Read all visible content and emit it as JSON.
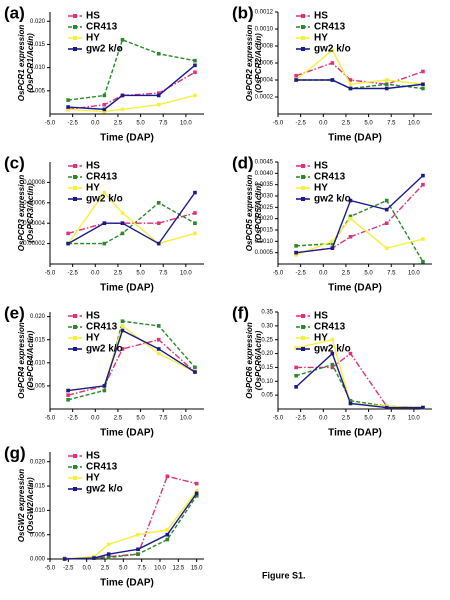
{
  "caption": "Figure S1.",
  "chart_data": [
    {
      "type": "line",
      "panel_label": "(a)",
      "ylabel": "OsPCR1 expression",
      "ylabel_sub": "(OsPCR1/Actin)",
      "xlabel": "Time (DAP)",
      "x": [
        -3,
        1,
        3,
        7,
        11
      ],
      "xlim": [
        -5,
        12
      ],
      "xticks": [
        {
          "value": -5,
          "label": "-5.0"
        },
        -2.5,
        {
          "value": 0,
          "label": "0.0"
        },
        2.5,
        {
          "value": 5,
          "label": "5.0"
        },
        7.5,
        {
          "value": 10,
          "label": "10.0"
        }
      ],
      "ylim": [
        0,
        0.022
      ],
      "yticks": [
        0.005,
        {
          "value": 0.01,
          "label": "0.010"
        },
        0.015,
        {
          "value": 0.02,
          "label": "0.020"
        }
      ],
      "series": [
        {
          "name": "HS",
          "color": "#e0307a",
          "values": [
            0.001,
            0.002,
            0.004,
            0.0045,
            0.009
          ]
        },
        {
          "name": "CR413",
          "color": "#2a8a2a",
          "values": [
            0.003,
            0.004,
            0.016,
            0.013,
            0.0115
          ]
        },
        {
          "name": "HY",
          "color": "#f5f040",
          "values": [
            0.001,
            0.0005,
            0.001,
            0.002,
            0.004
          ]
        },
        {
          "name": "gw2 k/o",
          "color": "#1a1a8c",
          "values": [
            0.0015,
            0.001,
            0.004,
            0.004,
            0.0105
          ]
        }
      ]
    },
    {
      "type": "line",
      "panel_label": "(b)",
      "ylabel": "OsPCR2 expression",
      "ylabel_sub": "(OsPCR2/Actin)",
      "xlabel": "Time (DAP)",
      "x": [
        -3,
        1,
        3,
        7,
        11
      ],
      "xlim": [
        -5,
        12
      ],
      "xticks": [
        {
          "value": -5,
          "label": "-5.0"
        },
        -2.5,
        {
          "value": 0,
          "label": "0.0"
        },
        2.5,
        {
          "value": 5,
          "label": "5.0"
        },
        7.5,
        {
          "value": 10,
          "label": "10.0"
        }
      ],
      "ylim": [
        0,
        0.0012
      ],
      "yticks": [
        0.0002,
        0.0004,
        0.0006,
        0.0008,
        {
          "value": 0.001,
          "label": "0.0010"
        },
        0.0012
      ],
      "series": [
        {
          "name": "HS",
          "color": "#e0307a",
          "values": [
            0.00045,
            0.0006,
            0.0004,
            0.00035,
            0.0005
          ]
        },
        {
          "name": "CR413",
          "color": "#2a8a2a",
          "values": [
            0.0004,
            0.0004,
            0.0003,
            0.00035,
            0.0003
          ]
        },
        {
          "name": "HY",
          "color": "#f5f040",
          "values": [
            0.0004,
            0.00075,
            0.00035,
            0.0004,
            0.00035
          ]
        },
        {
          "name": "gw2 k/o",
          "color": "#1a1a8c",
          "values": [
            0.0004,
            0.0004,
            0.0003,
            0.0003,
            0.00035
          ]
        }
      ]
    },
    {
      "type": "line",
      "panel_label": "(c)",
      "ylabel": "OsPCR3 expression",
      "ylabel_sub": "(OsPCR3/Actin)",
      "xlabel": "Time (DAP)",
      "x": [
        -3,
        1,
        3,
        7,
        11
      ],
      "xlim": [
        -5,
        12
      ],
      "xticks": [
        {
          "value": -5,
          "label": "-5.0"
        },
        -2.5,
        {
          "value": 0,
          "label": "0.0"
        },
        2.5,
        {
          "value": 5,
          "label": "5.0"
        },
        7.5,
        {
          "value": 10,
          "label": "10.0"
        }
      ],
      "ylim": [
        0,
        0.0001
      ],
      "yticks": [
        2e-05,
        4e-05,
        6e-05,
        8e-05
      ],
      "series": [
        {
          "name": "HS",
          "color": "#e0307a",
          "values": [
            3e-05,
            4e-05,
            4e-05,
            4e-05,
            5e-05
          ]
        },
        {
          "name": "CR413",
          "color": "#2a8a2a",
          "values": [
            2e-05,
            2e-05,
            3e-05,
            6e-05,
            4e-05
          ]
        },
        {
          "name": "HY",
          "color": "#f5f040",
          "values": [
            2e-05,
            7e-05,
            5e-05,
            2e-05,
            3e-05
          ]
        },
        {
          "name": "gw2 k/o",
          "color": "#1a1a8c",
          "values": [
            2e-05,
            4e-05,
            4e-05,
            2e-05,
            7e-05
          ]
        }
      ]
    },
    {
      "type": "line",
      "panel_label": "(d)",
      "ylabel": "OsPCR5 expression",
      "ylabel_sub": "(OsPCR5/Actin)",
      "xlabel": "Time (DAP)",
      "x": [
        -3,
        1,
        3,
        7,
        11
      ],
      "xlim": [
        -5,
        12
      ],
      "xticks": [
        {
          "value": -5,
          "label": "-5.0"
        },
        -2.5,
        {
          "value": 0,
          "label": "0.0"
        },
        2.5,
        {
          "value": 5,
          "label": "5.0"
        },
        7.5,
        {
          "value": 10,
          "label": "10.0"
        }
      ],
      "ylim": [
        0,
        0.0045
      ],
      "yticks": [
        0.0005,
        {
          "value": 0.001,
          "label": "0.0010"
        },
        0.0015,
        {
          "value": 0.002,
          "label": "0.0020"
        },
        0.0025,
        {
          "value": 0.003,
          "label": "0.0030"
        },
        0.0035,
        {
          "value": 0.004,
          "label": "0.0040"
        },
        0.0045
      ],
      "series": [
        {
          "name": "HS",
          "color": "#e0307a",
          "values": [
            0.0005,
            0.0007,
            0.0012,
            0.0018,
            0.0035
          ]
        },
        {
          "name": "CR413",
          "color": "#2a8a2a",
          "values": [
            0.0008,
            0.0009,
            0.0021,
            0.0028,
            0.0001
          ]
        },
        {
          "name": "HY",
          "color": "#f5f040",
          "values": [
            0.0004,
            0.001,
            0.002,
            0.0007,
            0.0011
          ]
        },
        {
          "name": "gw2 k/o",
          "color": "#1a1a8c",
          "values": [
            0.0005,
            0.0007,
            0.0028,
            0.0024,
            0.0039
          ]
        }
      ]
    },
    {
      "type": "line",
      "panel_label": "(e)",
      "ylabel": "OsPCR4 expression",
      "ylabel_sub": "(OsPCR4/Actin)",
      "xlabel": "Time (DAP)",
      "x": [
        -3,
        1,
        3,
        7,
        11
      ],
      "xlim": [
        -5,
        12
      ],
      "xticks": [
        {
          "value": -5,
          "label": "-5.0"
        },
        -2.5,
        {
          "value": 0,
          "label": "0.0"
        },
        2.5,
        {
          "value": 5,
          "label": "5.0"
        },
        7.5,
        {
          "value": 10,
          "label": "10.0"
        }
      ],
      "ylim": [
        0,
        0.021
      ],
      "yticks": [
        0.005,
        {
          "value": 0.01,
          "label": "0.010"
        },
        0.015,
        {
          "value": 0.02,
          "label": "0.020"
        }
      ],
      "series": [
        {
          "name": "HS",
          "color": "#e0307a",
          "values": [
            0.003,
            0.005,
            0.013,
            0.015,
            0.008
          ]
        },
        {
          "name": "CR413",
          "color": "#2a8a2a",
          "values": [
            0.002,
            0.004,
            0.019,
            0.018,
            0.009
          ]
        },
        {
          "name": "HY",
          "color": "#f5f040",
          "values": [
            0.004,
            0.005,
            0.018,
            0.012,
            0.008
          ]
        },
        {
          "name": "gw2 k/o",
          "color": "#1a1a8c",
          "values": [
            0.004,
            0.005,
            0.017,
            0.013,
            0.008
          ]
        }
      ]
    },
    {
      "type": "line",
      "panel_label": "(f)",
      "ylabel": "OsPCR6 expression",
      "ylabel_sub": "(OsPCR6/Actin)",
      "xlabel": "Time (DAP)",
      "x": [
        -3,
        1,
        3,
        7,
        11
      ],
      "xlim": [
        -5,
        12
      ],
      "xticks": [
        {
          "value": -5,
          "label": "-5.0"
        },
        -2.5,
        {
          "value": 0,
          "label": "0.0"
        },
        2.5,
        {
          "value": 5,
          "label": "5.0"
        },
        7.5,
        {
          "value": 10,
          "label": "10.0"
        }
      ],
      "ylim": [
        0,
        0.35
      ],
      "yticks": [
        0.05,
        {
          "value": 0.1,
          "label": "0.10"
        },
        0.15,
        {
          "value": 0.2,
          "label": "0.20"
        },
        0.25,
        {
          "value": 0.3,
          "label": "0.30"
        },
        0.35
      ],
      "series": [
        {
          "name": "HS",
          "color": "#e0307a",
          "values": [
            0.15,
            0.15,
            0.2,
            0.01,
            0.005
          ]
        },
        {
          "name": "CR413",
          "color": "#2a8a2a",
          "values": [
            0.12,
            0.16,
            0.03,
            0.01,
            0.005
          ]
        },
        {
          "name": "HY",
          "color": "#f5f040",
          "values": [
            0.22,
            0.25,
            0.02,
            0.01,
            0.005
          ]
        },
        {
          "name": "gw2 k/o",
          "color": "#1a1a8c",
          "values": [
            0.08,
            0.2,
            0.02,
            0.005,
            0.005
          ]
        }
      ]
    },
    {
      "type": "line",
      "panel_label": "(g)",
      "ylabel": "OsGW2 expression",
      "ylabel_sub": "(OsGW2/Actin)",
      "xlabel": "Time (DAP)",
      "x": [
        -3,
        1,
        3,
        7,
        11,
        15
      ],
      "xlim": [
        -5,
        16
      ],
      "xticks": [
        {
          "value": -5,
          "label": "-5.0"
        },
        -2.5,
        {
          "value": 0,
          "label": "0.0"
        },
        2.5,
        {
          "value": 5,
          "label": "5.0"
        },
        7.5,
        {
          "value": 10,
          "label": "10.0"
        },
        12.5,
        {
          "value": 15,
          "label": "15.0"
        }
      ],
      "ylim": [
        0,
        0.022
      ],
      "yticks": [
        {
          "value": 0,
          "label": "0.000"
        },
        0.005,
        {
          "value": 0.01,
          "label": "0.010"
        },
        0.015,
        {
          "value": 0.02,
          "label": "0.020"
        }
      ],
      "series": [
        {
          "name": "HS",
          "color": "#e0307a",
          "values": [
            0.0001,
            0.0002,
            0.0005,
            0.001,
            0.017,
            0.0155
          ]
        },
        {
          "name": "CR413",
          "color": "#2a8a2a",
          "values": [
            0,
            0.0002,
            0.0003,
            0.001,
            0.004,
            0.013
          ]
        },
        {
          "name": "HY",
          "color": "#f5f040",
          "values": [
            0,
            0.0005,
            0.003,
            0.005,
            0.006,
            0.014
          ]
        },
        {
          "name": "gw2 k/o",
          "color": "#1a1a8c",
          "values": [
            0,
            0.0002,
            0.001,
            0.002,
            0.005,
            0.0135
          ]
        }
      ]
    }
  ]
}
